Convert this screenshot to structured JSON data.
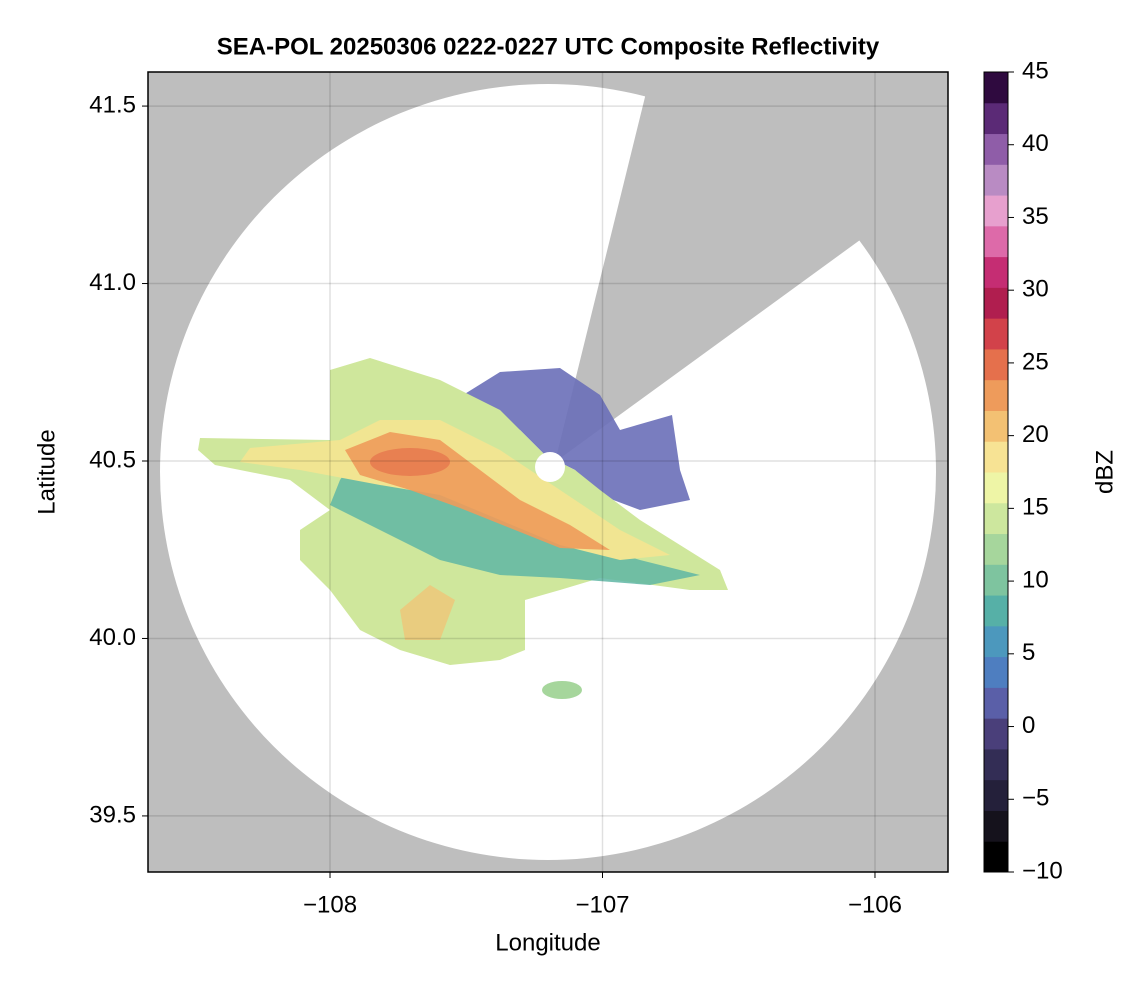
{
  "chart_data": {
    "type": "heatmap",
    "title": "SEA-POL 20250306 0222-0227 UTC Composite Reflectivity",
    "x_label": "Longitude",
    "y_label": "Latitude",
    "colorbar_label": "dBZ",
    "xlim": [
      -108.668,
      -105.732
    ],
    "ylim": [
      39.342,
      41.596
    ],
    "xticks": [
      {
        "value": -108,
        "label": "−108"
      },
      {
        "value": -107,
        "label": "−107"
      },
      {
        "value": -106,
        "label": "−106"
      }
    ],
    "yticks": [
      39.5,
      {
        "value": 40,
        "label": "40.0"
      },
      40.5,
      {
        "value": 41,
        "label": "41.0"
      },
      41.5
    ],
    "grid": true,
    "clim": [
      -10,
      45
    ],
    "cticks": [
      {
        "value": -10,
        "label": "−10"
      },
      {
        "value": -5,
        "label": "−5"
      },
      0,
      5,
      10,
      15,
      20,
      25,
      30,
      35,
      40,
      45
    ],
    "colors": [
      "#000000",
      "#15121c",
      "#24203a",
      "#332d55",
      "#4a3f7a",
      "#5a5fa8",
      "#4e7ec0",
      "#4c98bd",
      "#56b0a7",
      "#7ec49f",
      "#a6d69c",
      "#cde79e",
      "#eef5a6",
      "#f7e394",
      "#f3c173",
      "#ee9b5b",
      "#e5704c",
      "#d2424a",
      "#b01e4f",
      "#c52d73",
      "#dd6aa9",
      "#e7a0ce",
      "#b98bc3",
      "#8f5da8",
      "#5b2a76",
      "#2f0a3f"
    ]
  }
}
